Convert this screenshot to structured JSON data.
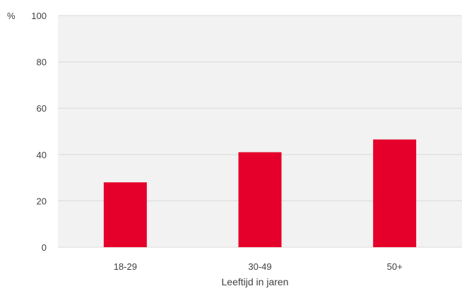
{
  "chart_data": {
    "type": "bar",
    "categories": [
      "18-29",
      "30-49",
      "50+"
    ],
    "values": [
      28,
      41,
      46.5
    ],
    "xlabel": "Leeftijd in jaren",
    "ylabel": "%",
    "ylim": [
      0,
      100
    ],
    "yticks": [
      "0",
      "20",
      "40",
      "60",
      "80",
      "100"
    ],
    "grid": true,
    "colors": {
      "bar": "#e4002b",
      "plot_background": "#f2f2f2",
      "grid": "#d9d9d9",
      "text": "#404040"
    }
  }
}
